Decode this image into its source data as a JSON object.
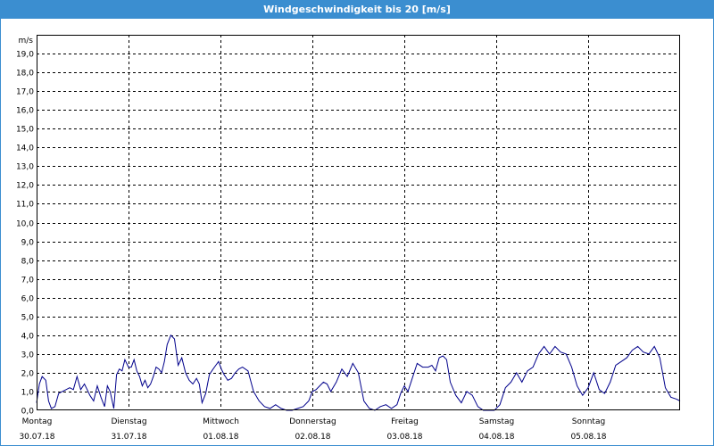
{
  "window": {
    "title": "Windgeschwindigkeit bis 20 [m/s]"
  },
  "chart_data": {
    "type": "line",
    "title": "Windgeschwindigkeit bis 20 [m/s]",
    "ylabel": "m/s",
    "ylim": [
      0,
      20
    ],
    "ytick_labels": [
      "0,0",
      "1,0",
      "2,0",
      "3,0",
      "4,0",
      "5,0",
      "6,0",
      "7,0",
      "8,0",
      "9,0",
      "10,0",
      "11,0",
      "12,0",
      "13,0",
      "14,0",
      "15,0",
      "16,0",
      "17,0",
      "18,0",
      "19,0"
    ],
    "xlim": [
      0,
      7
    ],
    "xticks": [
      {
        "day": "Montag",
        "date": "30.07.18"
      },
      {
        "day": "Dienstag",
        "date": "31.07.18"
      },
      {
        "day": "Mittwoch",
        "date": "01.08.18"
      },
      {
        "day": "Donnerstag",
        "date": "02.08.18"
      },
      {
        "day": "Freitag",
        "date": "03.08.18"
      },
      {
        "day": "Samstag",
        "date": "04.08.18"
      },
      {
        "day": "Sonntag",
        "date": "05.08.18"
      }
    ],
    "grid": true,
    "colors": {
      "line": "#00008b",
      "grid": "#000000",
      "titlebar": "#3b8ed0"
    },
    "series": [
      {
        "x": [
          0.0,
          0.03,
          0.06,
          0.1,
          0.13,
          0.16,
          0.2,
          0.24,
          0.28,
          0.32,
          0.36,
          0.4,
          0.44,
          0.48,
          0.52,
          0.55,
          0.58,
          0.62,
          0.66,
          0.7,
          0.74,
          0.77,
          0.8,
          0.84,
          0.87,
          0.9,
          0.93,
          0.96,
          1.0,
          1.03,
          1.06,
          1.09,
          1.12,
          1.15,
          1.18,
          1.21,
          1.24,
          1.27,
          1.3,
          1.33,
          1.36,
          1.39,
          1.42,
          1.46,
          1.5,
          1.54,
          1.58,
          1.62,
          1.66,
          1.7,
          1.74,
          1.77,
          1.8,
          1.84,
          1.88,
          1.92,
          1.95,
          1.98,
          2.01,
          2.04,
          2.08,
          2.12,
          2.16,
          2.2,
          2.24,
          2.3,
          2.36,
          2.42,
          2.48,
          2.54,
          2.6,
          2.66,
          2.72,
          2.78,
          2.84,
          2.9,
          2.96,
          3.0,
          3.04,
          3.08,
          3.12,
          3.16,
          3.2,
          3.26,
          3.32,
          3.38,
          3.44,
          3.5,
          3.56,
          3.62,
          3.68,
          3.74,
          3.8,
          3.86,
          3.92,
          3.96,
          4.0,
          4.04,
          4.08,
          4.14,
          4.2,
          4.26,
          4.3,
          4.34,
          4.38,
          4.42,
          4.46,
          4.5,
          4.56,
          4.62,
          4.68,
          4.74,
          4.8,
          4.86,
          4.92,
          4.98,
          5.04,
          5.1,
          5.16,
          5.22,
          5.28,
          5.34,
          5.4,
          5.46,
          5.52,
          5.58,
          5.64,
          5.7,
          5.76,
          5.82,
          5.88,
          5.94,
          6.0,
          6.06,
          6.12,
          6.18,
          6.24,
          6.3,
          6.36,
          6.42,
          6.48,
          6.54,
          6.6,
          6.66,
          6.72,
          6.78,
          6.84,
          6.9,
          6.96,
          7.0
        ],
        "y": [
          0.4,
          1.4,
          1.8,
          1.6,
          0.5,
          0.1,
          0.2,
          0.9,
          1.0,
          1.1,
          1.2,
          1.1,
          1.8,
          1.1,
          1.4,
          1.1,
          0.8,
          0.5,
          1.3,
          0.7,
          0.2,
          1.3,
          1.0,
          0.1,
          1.9,
          2.2,
          2.1,
          2.7,
          2.3,
          2.3,
          2.7,
          2.1,
          1.8,
          1.3,
          1.6,
          1.2,
          1.4,
          1.8,
          2.3,
          2.2,
          2.0,
          2.6,
          3.5,
          4.0,
          3.8,
          2.4,
          2.8,
          2.0,
          1.6,
          1.4,
          1.7,
          1.4,
          0.4,
          0.9,
          1.9,
          2.2,
          2.4,
          2.6,
          2.2,
          1.9,
          1.6,
          1.7,
          2.0,
          2.2,
          2.3,
          2.1,
          1.0,
          0.5,
          0.2,
          0.1,
          0.3,
          0.1,
          0.0,
          0.0,
          0.1,
          0.2,
          0.5,
          1.0,
          1.1,
          1.3,
          1.5,
          1.4,
          1.0,
          1.5,
          2.2,
          1.8,
          2.5,
          2.0,
          0.5,
          0.1,
          0.0,
          0.2,
          0.3,
          0.1,
          0.3,
          0.9,
          1.3,
          1.0,
          1.6,
          2.5,
          2.3,
          2.3,
          2.4,
          2.1,
          2.8,
          2.9,
          2.7,
          1.5,
          0.8,
          0.4,
          1.0,
          0.8,
          0.2,
          0.0,
          0.0,
          0.0,
          0.3,
          1.2,
          1.5,
          2.0,
          1.5,
          2.1,
          2.3,
          3.0,
          3.4,
          3.0,
          3.4,
          3.1,
          3.0,
          2.3,
          1.3,
          0.8,
          1.2,
          2.0,
          1.1,
          0.9,
          1.5,
          2.4,
          2.6,
          2.8,
          3.2,
          3.4,
          3.1,
          3.0,
          3.4,
          2.8,
          1.2,
          0.7,
          0.6,
          0.5
        ]
      }
    ]
  }
}
